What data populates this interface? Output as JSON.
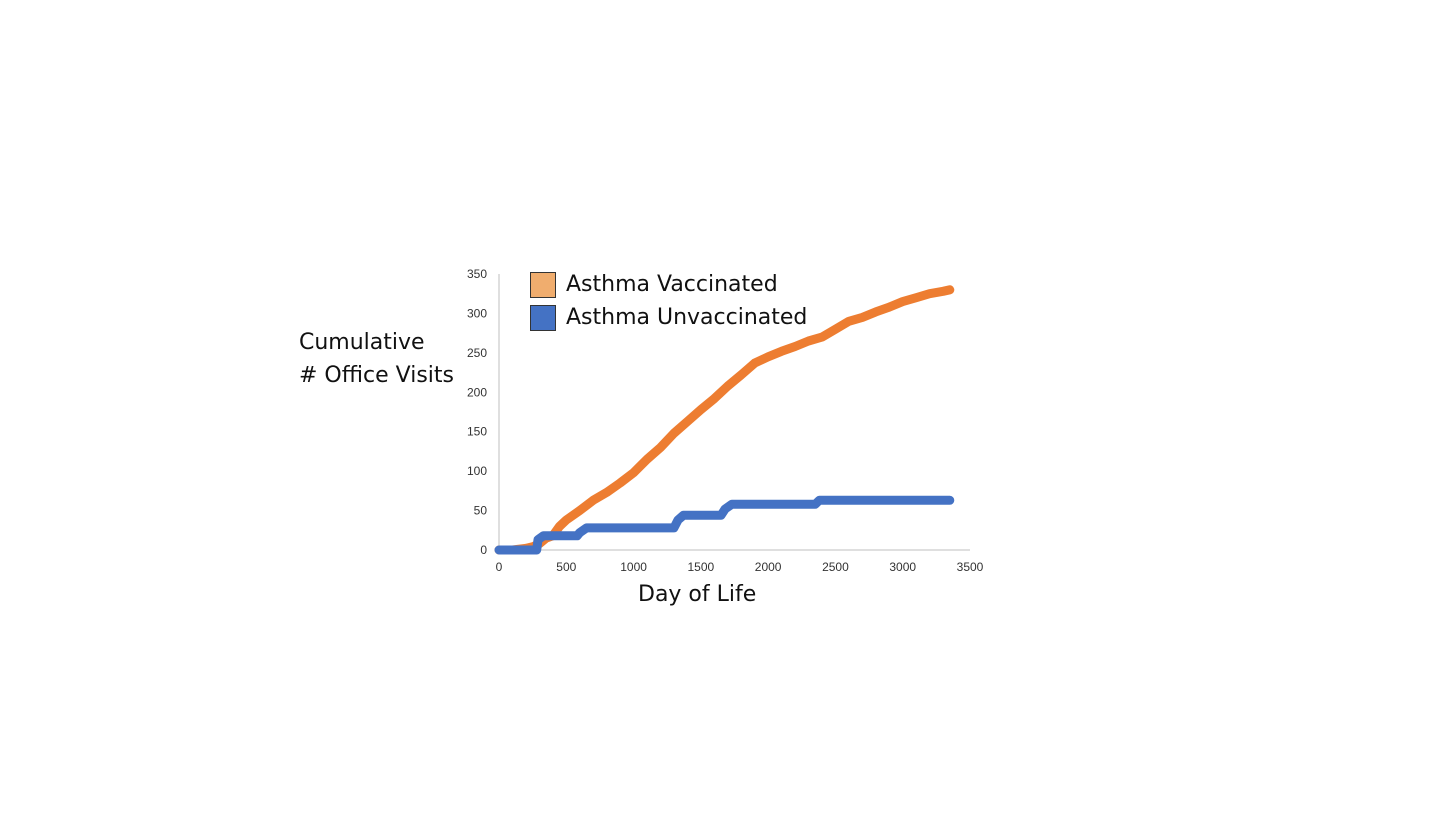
{
  "chart_data": {
    "type": "line",
    "title": "",
    "xlabel": "Day of Life",
    "ylabel_lines": [
      "Cumulative",
      "# Office Visits"
    ],
    "xlim": [
      0,
      3500
    ],
    "ylim": [
      0,
      350
    ],
    "x_ticks": [
      "0",
      "500",
      "1000",
      "1500",
      "2000",
      "2500",
      "3000",
      "3500"
    ],
    "y_ticks": [
      "0",
      "50",
      "100",
      "150",
      "200",
      "250",
      "300",
      "350"
    ],
    "legend": [
      {
        "label": "Asthma Vaccinated",
        "color": "#f0ad6e"
      },
      {
        "label": "Asthma Unvaccinated",
        "color": "#4472c4"
      }
    ],
    "series": [
      {
        "name": "Asthma Vaccinated",
        "color": "#ed7d31",
        "x": [
          0,
          100,
          200,
          250,
          300,
          350,
          400,
          450,
          500,
          600,
          700,
          800,
          900,
          1000,
          1100,
          1200,
          1300,
          1400,
          1500,
          1600,
          1700,
          1800,
          1900,
          2000,
          2100,
          2200,
          2300,
          2400,
          2500,
          2600,
          2700,
          2800,
          2900,
          3000,
          3100,
          3200,
          3300,
          3350
        ],
        "y": [
          0,
          0,
          2,
          4,
          8,
          15,
          18,
          30,
          38,
          50,
          63,
          73,
          85,
          98,
          115,
          130,
          148,
          163,
          178,
          192,
          208,
          222,
          237,
          245,
          252,
          258,
          265,
          270,
          280,
          290,
          295,
          302,
          308,
          315,
          320,
          325,
          328,
          330
        ]
      },
      {
        "name": "Asthma Unvaccinated",
        "color": "#4472c4",
        "x": [
          0,
          150,
          280,
          290,
          330,
          580,
          600,
          650,
          1300,
          1330,
          1370,
          1650,
          1680,
          1730,
          2350,
          2380,
          3350
        ],
        "y": [
          0,
          0,
          0,
          13,
          18,
          18,
          22,
          28,
          28,
          38,
          44,
          44,
          52,
          58,
          58,
          63,
          63
        ]
      }
    ]
  }
}
